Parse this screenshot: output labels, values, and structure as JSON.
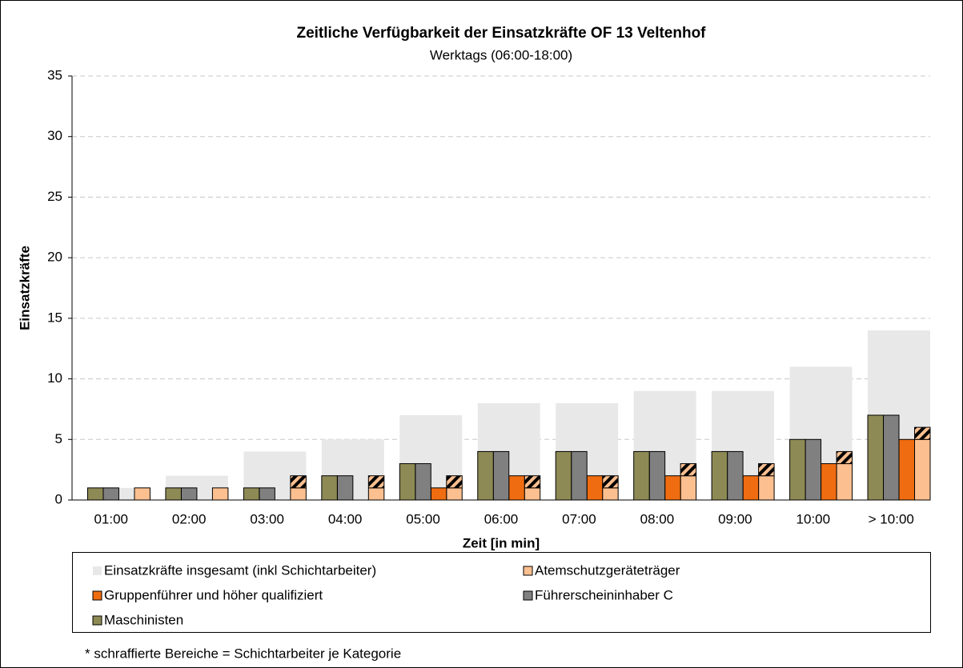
{
  "chart_data": {
    "type": "bar",
    "title": "Zeitliche Verfügbarkeit der Einsatzkräfte OF 13 Veltenhof",
    "subtitle": "Werktags (06:00-18:00)",
    "x_label": "Zeit [in min]",
    "y_label": "Einsatzkräfte",
    "footnote": "* schraffierte Bereiche = Schichtarbeiter je Kategorie",
    "categories": [
      "01:00",
      "02:00",
      "03:00",
      "04:00",
      "05:00",
      "06:00",
      "07:00",
      "08:00",
      "09:00",
      "10:00",
      "> 10:00"
    ],
    "series": [
      {
        "name": "Einsatzkräfte insgesamt (inkl Schichtarbeiter)",
        "color": "#e8e8e8",
        "values": [
          1,
          2,
          4,
          5,
          7,
          8,
          8,
          9,
          9,
          11,
          14
        ]
      },
      {
        "name": "Atemschutzgeräteträger",
        "color": "#fcbf90",
        "values": [
          1,
          1,
          1,
          1,
          1,
          1,
          1,
          2,
          2,
          3,
          5
        ],
        "hatched": [
          0,
          0,
          1,
          1,
          1,
          1,
          1,
          1,
          1,
          1,
          1
        ]
      },
      {
        "name": "Gruppenführer und höher qualifiziert",
        "color": "#ef6c10",
        "values": [
          0,
          0,
          0,
          0,
          1,
          2,
          2,
          2,
          2,
          3,
          5
        ]
      },
      {
        "name": "Führerscheininhaber C",
        "color": "#808080",
        "values": [
          1,
          1,
          1,
          2,
          3,
          4,
          4,
          4,
          4,
          5,
          7
        ]
      },
      {
        "name": "Maschinisten",
        "color": "#8e8a55",
        "values": [
          1,
          1,
          1,
          2,
          3,
          4,
          4,
          4,
          4,
          5,
          7
        ]
      }
    ],
    "ylim": [
      0,
      35
    ],
    "yticks": [
      0,
      5,
      10,
      15,
      20,
      25,
      30,
      35
    ],
    "grid": true
  }
}
